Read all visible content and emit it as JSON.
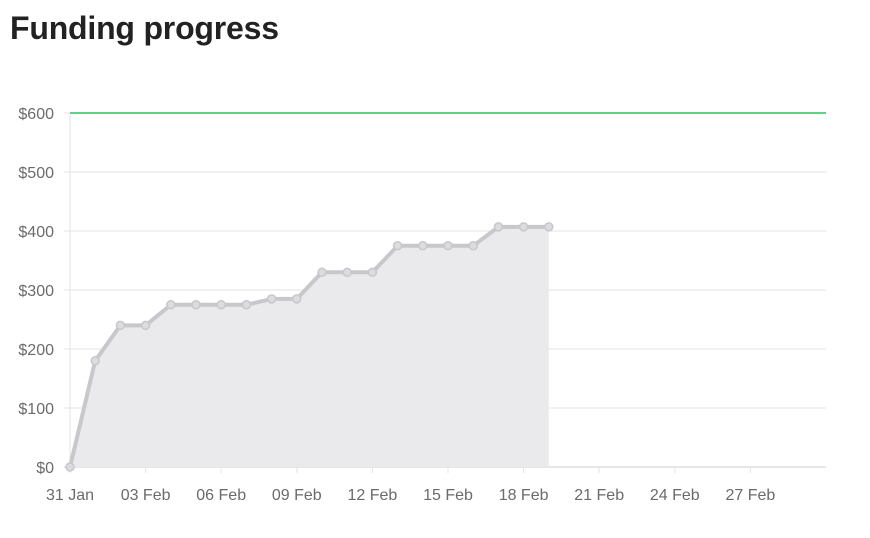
{
  "page": {
    "title": "Funding progress"
  },
  "chart_data": {
    "type": "area",
    "title": "Funding progress",
    "xlabel": "",
    "ylabel": "",
    "x_domain": [
      "2021-01-31",
      "2021-03-02"
    ],
    "ylim": [
      0,
      600
    ],
    "y_ticks": [
      0,
      100,
      200,
      300,
      400,
      500,
      600
    ],
    "y_tick_labels": [
      "$0",
      "$100",
      "$200",
      "$300",
      "$400",
      "$500",
      "$600"
    ],
    "x_ticks": [
      "2021-01-31",
      "2021-02-03",
      "2021-02-06",
      "2021-02-09",
      "2021-02-12",
      "2021-02-15",
      "2021-02-18",
      "2021-02-21",
      "2021-02-24",
      "2021-02-27"
    ],
    "x_tick_labels": [
      "31 Jan",
      "03 Feb",
      "06 Feb",
      "09 Feb",
      "12 Feb",
      "15 Feb",
      "18 Feb",
      "21 Feb",
      "24 Feb",
      "27 Feb"
    ],
    "grid": true,
    "legend": "none",
    "goal": 600,
    "series": [
      {
        "x": [
          "2021-01-31",
          "2021-02-01",
          "2021-02-02",
          "2021-02-03",
          "2021-02-04",
          "2021-02-05",
          "2021-02-06",
          "2021-02-07",
          "2021-02-08",
          "2021-02-09",
          "2021-02-10",
          "2021-02-11",
          "2021-02-12",
          "2021-02-13",
          "2021-02-14",
          "2021-02-15",
          "2021-02-16",
          "2021-02-17",
          "2021-02-18",
          "2021-02-19"
        ],
        "values": [
          0,
          180,
          240,
          240,
          275,
          275,
          275,
          275,
          285,
          285,
          330,
          330,
          330,
          375,
          375,
          375,
          375,
          407,
          407,
          407
        ]
      }
    ],
    "colors": {
      "line": "#c8c8cc",
      "area": "#eaeaec",
      "point_fill": "#dcdcde",
      "goal": "#5fcf8b",
      "grid": "#e3e3e3",
      "axis": "#cccccc"
    }
  }
}
